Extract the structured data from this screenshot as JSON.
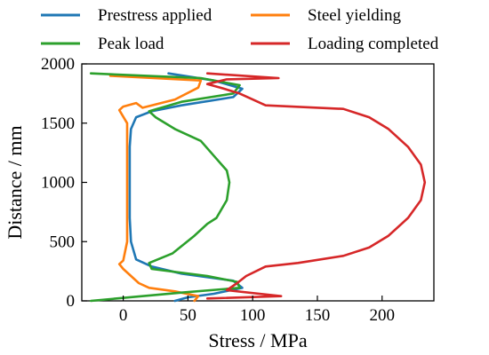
{
  "chart_data": {
    "type": "line",
    "xlabel": "Stress / MPa",
    "ylabel": "Distance / mm",
    "xlim": [
      -32,
      240
    ],
    "ylim": [
      0,
      2000
    ],
    "xticks": [
      0,
      50,
      100,
      150,
      200
    ],
    "yticks": [
      0,
      500,
      1000,
      1500,
      2000
    ],
    "grid": false,
    "legend_position": "top",
    "series": [
      {
        "name": "Prestress applied",
        "color": "#1f77b4",
        "points": [
          [
            40,
            0
          ],
          [
            50,
            30
          ],
          [
            70,
            60
          ],
          [
            92,
            110
          ],
          [
            85,
            170
          ],
          [
            45,
            230
          ],
          [
            22,
            290
          ],
          [
            10,
            350
          ],
          [
            6,
            500
          ],
          [
            5,
            700
          ],
          [
            5,
            1000
          ],
          [
            5,
            1300
          ],
          [
            6,
            1450
          ],
          [
            10,
            1550
          ],
          [
            22,
            1600
          ],
          [
            45,
            1650
          ],
          [
            85,
            1720
          ],
          [
            92,
            1790
          ],
          [
            70,
            1860
          ],
          [
            35,
            1920
          ]
        ]
      },
      {
        "name": "Steel yielding",
        "color": "#ff7f0e",
        "points": [
          [
            55,
            0
          ],
          [
            58,
            40
          ],
          [
            40,
            80
          ],
          [
            20,
            110
          ],
          [
            12,
            150
          ],
          [
            0,
            270
          ],
          [
            -3,
            310
          ],
          [
            0,
            340
          ],
          [
            3,
            500
          ],
          [
            3,
            1000
          ],
          [
            3,
            1300
          ],
          [
            3,
            1500
          ],
          [
            -3,
            1610
          ],
          [
            0,
            1640
          ],
          [
            10,
            1670
          ],
          [
            15,
            1630
          ],
          [
            40,
            1700
          ],
          [
            58,
            1800
          ],
          [
            60,
            1860
          ],
          [
            -10,
            1900
          ]
        ]
      },
      {
        "name": "Peak load",
        "color": "#2ca02c",
        "points": [
          [
            -25,
            0
          ],
          [
            45,
            70
          ],
          [
            90,
            110
          ],
          [
            88,
            160
          ],
          [
            65,
            210
          ],
          [
            22,
            270
          ],
          [
            20,
            320
          ],
          [
            38,
            400
          ],
          [
            55,
            550
          ],
          [
            65,
            650
          ],
          [
            72,
            700
          ],
          [
            80,
            850
          ],
          [
            82,
            1000
          ],
          [
            80,
            1100
          ],
          [
            72,
            1200
          ],
          [
            60,
            1350
          ],
          [
            40,
            1450
          ],
          [
            25,
            1550
          ],
          [
            20,
            1600
          ],
          [
            45,
            1680
          ],
          [
            85,
            1750
          ],
          [
            90,
            1820
          ],
          [
            60,
            1880
          ],
          [
            -25,
            1920
          ]
        ]
      },
      {
        "name": "Loading completed",
        "color": "#d62728",
        "points": [
          [
            65,
            20
          ],
          [
            122,
            40
          ],
          [
            80,
            90
          ],
          [
            88,
            150
          ],
          [
            95,
            210
          ],
          [
            110,
            290
          ],
          [
            135,
            320
          ],
          [
            170,
            380
          ],
          [
            190,
            450
          ],
          [
            205,
            550
          ],
          [
            220,
            700
          ],
          [
            230,
            850
          ],
          [
            233,
            1000
          ],
          [
            230,
            1150
          ],
          [
            220,
            1300
          ],
          [
            205,
            1450
          ],
          [
            190,
            1550
          ],
          [
            170,
            1620
          ],
          [
            110,
            1650
          ],
          [
            100,
            1700
          ],
          [
            90,
            1750
          ],
          [
            75,
            1800
          ],
          [
            65,
            1830
          ],
          [
            80,
            1870
          ],
          [
            120,
            1880
          ],
          [
            65,
            1920
          ]
        ]
      }
    ]
  }
}
